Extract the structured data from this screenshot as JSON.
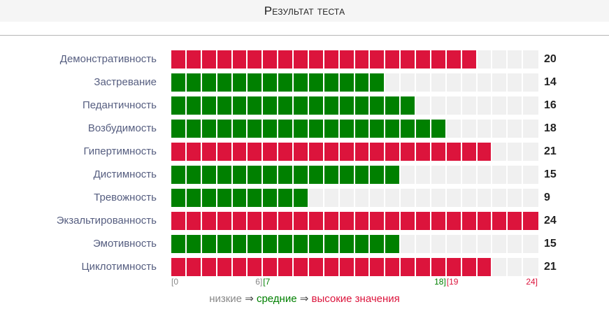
{
  "title": "Результат теста",
  "chart_data": {
    "type": "bar",
    "orientation": "horizontal",
    "max": 24,
    "categories": [
      "Демонстративность",
      "Застревание",
      "Педантичность",
      "Возбудимость",
      "Гипертимность",
      "Дистимность",
      "Тревожность",
      "Экзальтированность",
      "Эмотивность",
      "Циклотимность"
    ],
    "values": [
      20,
      14,
      16,
      18,
      21,
      15,
      9,
      24,
      15,
      21
    ],
    "bands": [
      "high",
      "mid",
      "mid",
      "mid",
      "high",
      "mid",
      "mid",
      "high",
      "mid",
      "high"
    ],
    "value_labels": [
      "20",
      "14",
      "16",
      "18",
      "21",
      "15",
      "9",
      "24",
      "15",
      "21"
    ],
    "scale_ticks": [
      {
        "label": "[0",
        "value": 0,
        "band": "low"
      },
      {
        "label": "6]",
        "value": 6,
        "band": "low"
      },
      {
        "label": "[7",
        "value": 7,
        "band": "mid"
      },
      {
        "label": "18]",
        "value": 18,
        "band": "mid"
      },
      {
        "label": "[19",
        "value": 19,
        "band": "high"
      },
      {
        "label": "24]",
        "value": 24,
        "band": "high"
      }
    ]
  },
  "legend": {
    "low": "низкие",
    "arrow1": " ⇒ ",
    "mid": "средние",
    "arrow2": " ⇒ ",
    "high": "высокие значения"
  },
  "colors": {
    "low": "#888888",
    "mid": "#008000",
    "high": "#dc143c",
    "empty": "#f0f0f0",
    "arrow": "#444444"
  }
}
